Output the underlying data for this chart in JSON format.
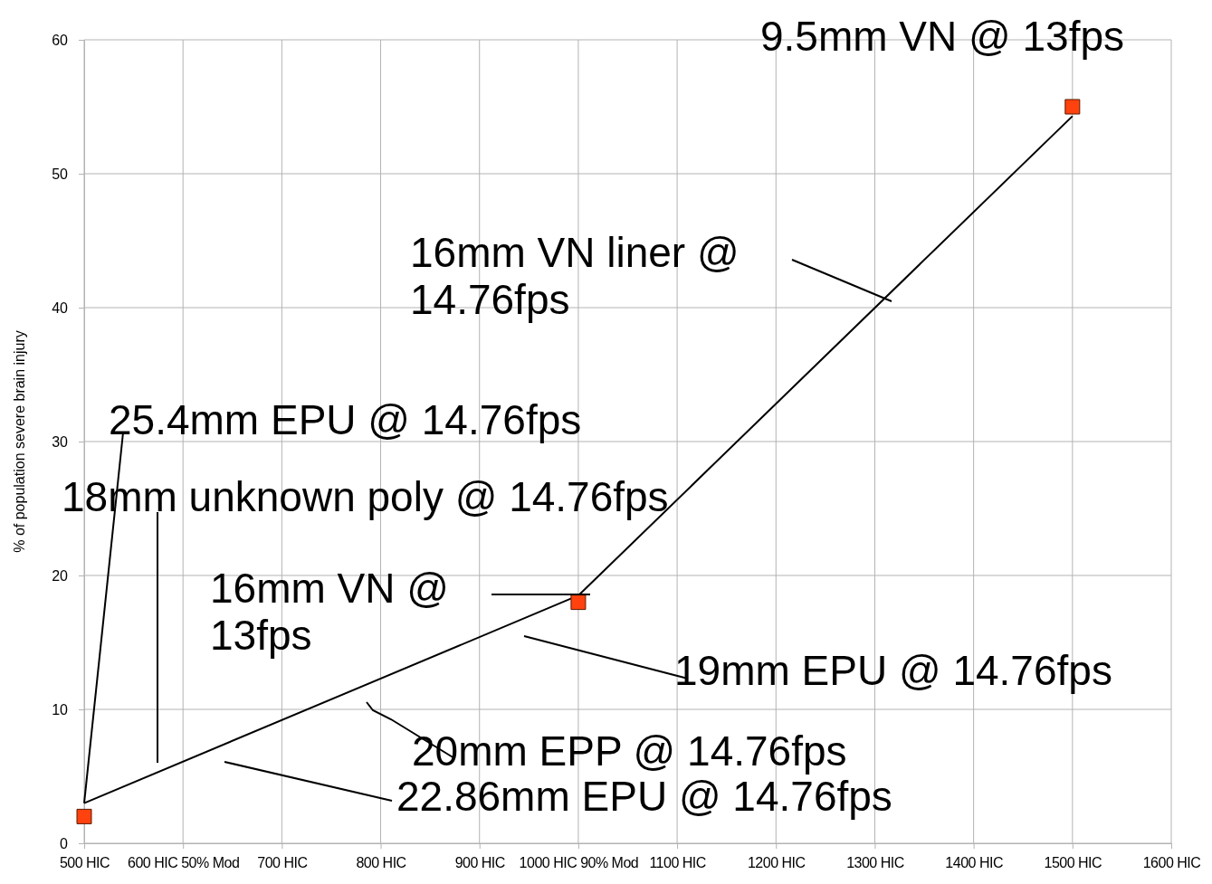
{
  "chart_data": {
    "type": "scatter",
    "ylabel": "% of population severe brain injury",
    "categories": [
      "500 HIC",
      "600 HIC 50% Mod",
      "700 HIC",
      "800 HIC",
      "900 HIC",
      "1000 HIC 90% Mod",
      "1100 HIC",
      "1200 HIC",
      "1300 HIC",
      "1400 HIC",
      "1500 HIC",
      "1600 HIC"
    ],
    "series": [
      {
        "type": "line",
        "color": "#000000",
        "x": [
          "500 HIC",
          "1000 HIC 90% Mod",
          "1500 HIC"
        ],
        "values": [
          3,
          18.5,
          54.3
        ],
        "marker": "none"
      },
      {
        "color": "#ff420e",
        "marker": "square",
        "values": [
          2,
          null,
          null,
          null,
          null,
          18,
          null,
          null,
          null,
          null,
          55,
          null
        ]
      }
    ],
    "ylim": [
      0,
      60
    ],
    "yticks": [
      0,
      10,
      20,
      30,
      40,
      50,
      60
    ],
    "grid": true,
    "annotations": [
      "9.5mm VN @ 13fps",
      "16mm VN liner @\n14.76fps",
      {
        "text": "25.4mm EPU @ 14.76fps",
        "x": "500 HIC",
        "y": 3
      },
      "18mm unknown poly @ 14.76fps",
      "16mm VN @\n13fps",
      "19mm EPU @ 14.76fps",
      "20mm EPP @ 14.76fps",
      "22.86mm EPU @ 14.76fps"
    ]
  }
}
